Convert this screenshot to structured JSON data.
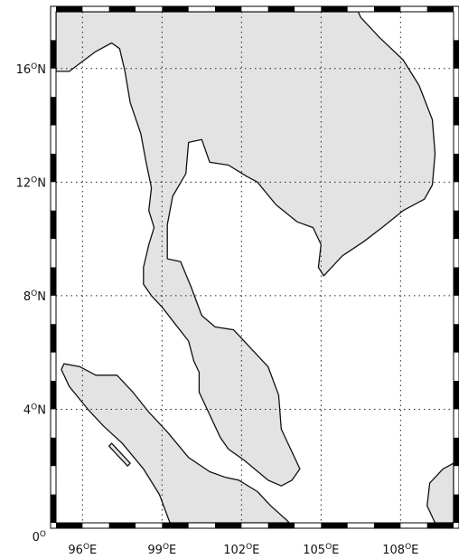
{
  "map": {
    "extent": {
      "lon_min": 95,
      "lon_max": 110,
      "lat_min": 0,
      "lat_max": 18
    },
    "land_color": "#e3e3e3",
    "water_color": "#ffffff",
    "coast_color": "#111111",
    "grid": {
      "style": "dotted",
      "lon_step": 3,
      "lat_step": 4
    },
    "x_ticks": [
      {
        "value": 96,
        "deg": "96",
        "hemi": "E"
      },
      {
        "value": 99,
        "deg": "99",
        "hemi": "E"
      },
      {
        "value": 102,
        "deg": "102",
        "hemi": "E"
      },
      {
        "value": 105,
        "deg": "105",
        "hemi": "E"
      },
      {
        "value": 108,
        "deg": "108",
        "hemi": "E"
      }
    ],
    "y_ticks": [
      {
        "value": 0,
        "deg": "0",
        "hemi": ""
      },
      {
        "value": 4,
        "deg": "4",
        "hemi": "N"
      },
      {
        "value": 8,
        "deg": "8",
        "hemi": "N"
      },
      {
        "value": 12,
        "deg": "12",
        "hemi": "N"
      },
      {
        "value": 16,
        "deg": "16",
        "hemi": "N"
      }
    ],
    "degree_symbol": "O",
    "landmasses": [
      {
        "name": "mainland-southeast-asia",
        "coords": [
          [
            95,
            17.4
          ],
          [
            95,
            15.9
          ],
          [
            95.5,
            15.9
          ],
          [
            96.5,
            16.6
          ],
          [
            97.1,
            16.9
          ],
          [
            97.4,
            16.7
          ],
          [
            97.6,
            15.9
          ],
          [
            97.8,
            14.8
          ],
          [
            98.2,
            13.7
          ],
          [
            98.4,
            12.7
          ],
          [
            98.6,
            11.8
          ],
          [
            98.5,
            11.0
          ],
          [
            98.7,
            10.4
          ],
          [
            98.5,
            9.8
          ],
          [
            98.3,
            9.0
          ],
          [
            98.3,
            8.4
          ],
          [
            98.6,
            8.0
          ],
          [
            99.0,
            7.6
          ],
          [
            99.5,
            7.0
          ],
          [
            100.0,
            6.4
          ],
          [
            100.2,
            5.7
          ],
          [
            100.4,
            5.3
          ],
          [
            100.4,
            4.6
          ],
          [
            100.7,
            4.0
          ],
          [
            101.2,
            3.0
          ],
          [
            101.5,
            2.6
          ],
          [
            102.1,
            2.2
          ],
          [
            103.0,
            1.5
          ],
          [
            103.5,
            1.3
          ],
          [
            103.9,
            1.5
          ],
          [
            104.2,
            1.9
          ],
          [
            103.9,
            2.5
          ],
          [
            103.5,
            3.3
          ],
          [
            103.4,
            4.5
          ],
          [
            103.0,
            5.5
          ],
          [
            102.3,
            6.2
          ],
          [
            101.7,
            6.8
          ],
          [
            101.0,
            6.9
          ],
          [
            100.5,
            7.3
          ],
          [
            100.1,
            8.3
          ],
          [
            99.7,
            9.2
          ],
          [
            99.2,
            9.3
          ],
          [
            99.2,
            10.5
          ],
          [
            99.4,
            11.5
          ],
          [
            99.9,
            12.3
          ],
          [
            100.0,
            13.4
          ],
          [
            100.5,
            13.5
          ],
          [
            100.8,
            12.7
          ],
          [
            101.5,
            12.6
          ],
          [
            102.2,
            12.2
          ],
          [
            102.6,
            12.0
          ],
          [
            103.3,
            11.2
          ],
          [
            104.1,
            10.6
          ],
          [
            104.7,
            10.4
          ],
          [
            105.0,
            9.8
          ],
          [
            104.9,
            9.0
          ],
          [
            105.1,
            8.7
          ],
          [
            105.8,
            9.4
          ],
          [
            106.6,
            9.9
          ],
          [
            107.3,
            10.4
          ],
          [
            108.1,
            11.0
          ],
          [
            108.9,
            11.4
          ],
          [
            109.2,
            11.9
          ],
          [
            109.3,
            13.0
          ],
          [
            109.2,
            14.2
          ],
          [
            108.7,
            15.4
          ],
          [
            108.1,
            16.3
          ],
          [
            107.2,
            17.1
          ],
          [
            106.5,
            17.8
          ],
          [
            106.4,
            18.0
          ],
          [
            95,
            18.0
          ]
        ]
      },
      {
        "name": "sumatra",
        "coords": [
          [
            95.3,
            5.6
          ],
          [
            95.9,
            5.5
          ],
          [
            96.5,
            5.2
          ],
          [
            97.3,
            5.2
          ],
          [
            97.9,
            4.6
          ],
          [
            98.5,
            3.9
          ],
          [
            99.2,
            3.2
          ],
          [
            100.0,
            2.3
          ],
          [
            100.8,
            1.8
          ],
          [
            101.4,
            1.6
          ],
          [
            101.9,
            1.5
          ],
          [
            102.6,
            1.1
          ],
          [
            103.1,
            0.6
          ],
          [
            103.7,
            0.1
          ],
          [
            103.8,
            0
          ],
          [
            99.3,
            0
          ],
          [
            98.9,
            1.0
          ],
          [
            98.3,
            1.9
          ],
          [
            97.5,
            2.8
          ],
          [
            96.8,
            3.4
          ],
          [
            96.2,
            4.0
          ],
          [
            95.5,
            4.8
          ],
          [
            95.2,
            5.4
          ]
        ]
      },
      {
        "name": "simeulue-island",
        "coords": [
          [
            97.0,
            2.7
          ],
          [
            97.1,
            2.8
          ],
          [
            97.8,
            2.1
          ],
          [
            97.7,
            2.0
          ]
        ]
      },
      {
        "name": "borneo-tip",
        "coords": [
          [
            110,
            2.1
          ],
          [
            109.6,
            1.9
          ],
          [
            109.1,
            1.4
          ],
          [
            109.0,
            0.6
          ],
          [
            109.3,
            0
          ],
          [
            110,
            0
          ]
        ]
      }
    ]
  }
}
